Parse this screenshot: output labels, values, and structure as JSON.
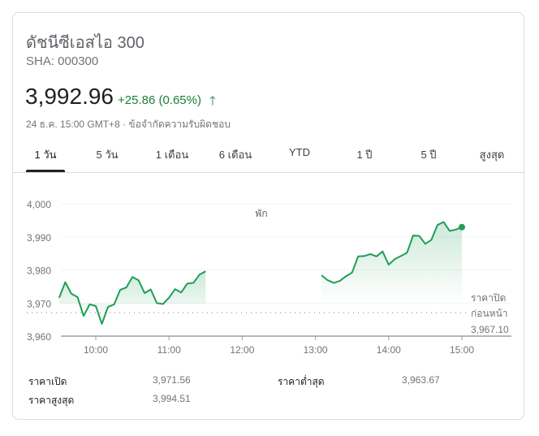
{
  "header": {
    "title": "ดัชนีซีเอสไอ 300",
    "ticker": "SHA: 000300",
    "price": "3,992.96",
    "change": "+25.86 (0.65%)",
    "change_direction": "up",
    "meta": "24 ธ.ค. 15:00 GMT+8 · ข้อจำกัดความรับผิดชอบ"
  },
  "tabs": [
    {
      "label": "1 วัน",
      "active": true
    },
    {
      "label": "5 วัน"
    },
    {
      "label": "1 เดือน"
    },
    {
      "label": "6 เดือน"
    },
    {
      "label": "YTD"
    },
    {
      "label": "1 ปี"
    },
    {
      "label": "5 ปี"
    },
    {
      "label": "สูงสุด"
    }
  ],
  "colors": {
    "up": "#188038",
    "line": "#1e9e56"
  },
  "chart_data": {
    "type": "area",
    "ylim": [
      3960,
      4000
    ],
    "y_ticks": [
      "4,000",
      "3,990",
      "3,980",
      "3,970",
      "3,960"
    ],
    "x_ticks": [
      "10:00",
      "11:00",
      "12:00",
      "13:00",
      "14:00",
      "15:00"
    ],
    "break_label": "พัก",
    "previous_close": {
      "label_line1": "ราคาปิด",
      "label_line2": "ก่อนหน้า",
      "value": 3967.1,
      "value_text": "3,967.10"
    },
    "series": [
      {
        "x": [
          "09:30",
          "09:35",
          "09:40",
          "09:45",
          "09:50",
          "09:55",
          "10:00",
          "10:05",
          "10:10",
          "10:15",
          "10:20",
          "10:25",
          "10:30",
          "10:35",
          "10:40",
          "10:45",
          "10:50",
          "10:55",
          "11:00",
          "11:05",
          "11:10",
          "11:15",
          "11:20",
          "11:25",
          "11:30"
        ],
        "values": [
          3971.6,
          3976.3,
          3972.8,
          3971.8,
          3966.1,
          3969.6,
          3969.1,
          3963.7,
          3968.8,
          3969.6,
          3974.0,
          3974.7,
          3977.9,
          3976.9,
          3973.0,
          3974.1,
          3970.0,
          3969.7,
          3971.6,
          3974.2,
          3973.2,
          3975.9,
          3976.1,
          3978.6,
          3979.6
        ]
      },
      {
        "x": [
          "13:05",
          "13:10",
          "13:15",
          "13:20",
          "13:25",
          "13:30",
          "13:35",
          "13:40",
          "13:45",
          "13:50",
          "13:55",
          "14:00",
          "14:05",
          "14:10",
          "14:15",
          "14:20",
          "14:25",
          "14:30",
          "14:35",
          "14:40",
          "14:45",
          "14:50",
          "14:55",
          "15:00"
        ],
        "values": [
          3978.4,
          3976.9,
          3976.1,
          3976.7,
          3978.1,
          3979.2,
          3984.1,
          3984.2,
          3984.8,
          3984.1,
          3985.6,
          3981.6,
          3983.3,
          3984.2,
          3985.2,
          3990.4,
          3990.3,
          3987.9,
          3989.1,
          3993.6,
          3994.5,
          3991.8,
          3992.2,
          3992.96
        ]
      }
    ]
  },
  "stats": [
    {
      "label": "ราคาเปิด",
      "value": "3,971.56"
    },
    {
      "label": "ราคาต่ำสุด",
      "value": "3,963.67"
    },
    {
      "label": "ราคาสูงสุด",
      "value": "3,994.51"
    }
  ]
}
